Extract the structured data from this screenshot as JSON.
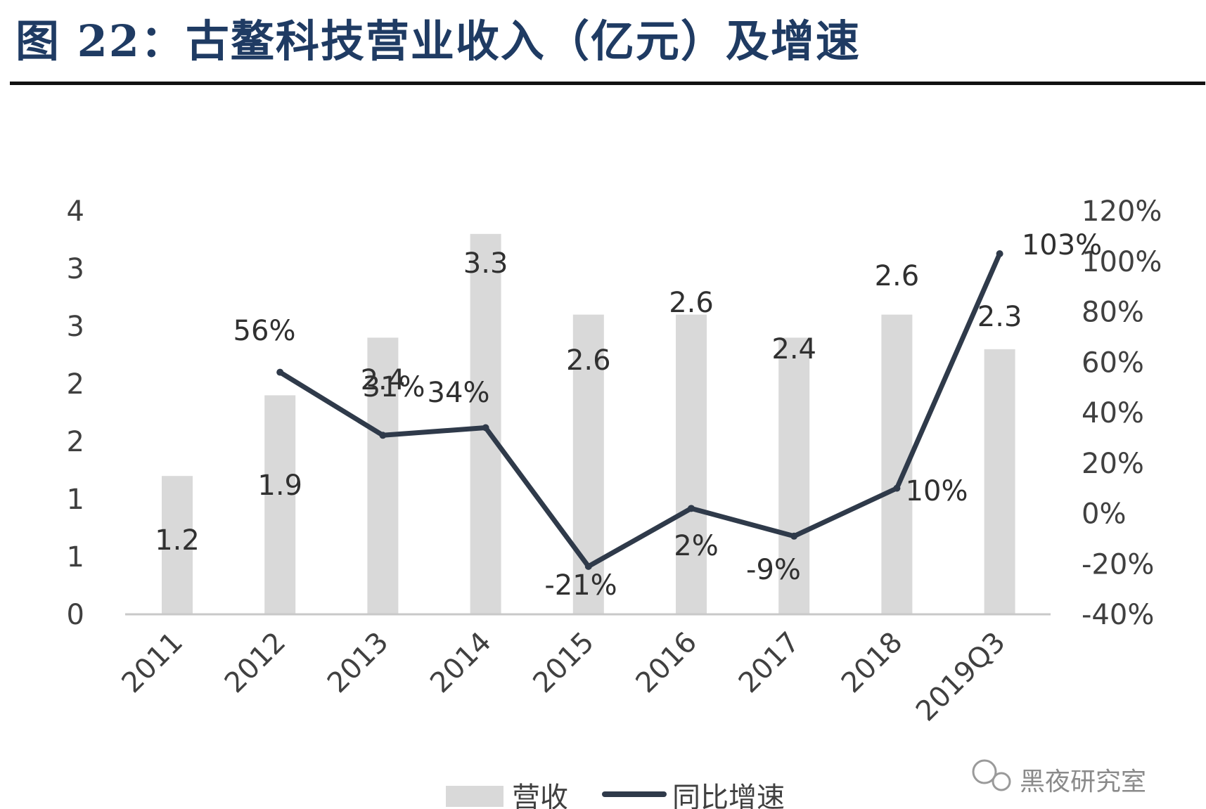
{
  "title": "图 22：古鳌科技营业收入（亿元）及增速",
  "watermark": "黑夜研究室",
  "chart_data": {
    "type": "bar",
    "title": "图 22：古鳌科技营业收入（亿元）及增速",
    "categories": [
      "2011",
      "2012",
      "2013",
      "2014",
      "2015",
      "2016",
      "2017",
      "2018",
      "2019Q3"
    ],
    "series": [
      {
        "name": "营收",
        "type": "bar",
        "axis": "left",
        "color": "#d9d9d9",
        "values": [
          1.2,
          1.9,
          2.4,
          3.3,
          2.6,
          2.6,
          2.4,
          2.6,
          2.3
        ],
        "value_labels": [
          "1.2",
          "1.9",
          "2.4",
          "3.3",
          "2.6",
          "2.6",
          "2.4",
          "2.6",
          "2.3"
        ]
      },
      {
        "name": "同比增速",
        "type": "line",
        "axis": "right",
        "color": "#2f3a4a",
        "values": [
          null,
          56,
          31,
          34,
          -21,
          2,
          -9,
          10,
          103
        ],
        "value_labels": [
          "",
          "56%",
          "31%",
          "34%",
          "-21%",
          "2%",
          "-9%",
          "10%",
          "103%"
        ]
      }
    ],
    "y_left": {
      "tick_labels": [
        "0",
        "1",
        "1",
        "2",
        "2",
        "3",
        "3",
        "4"
      ],
      "ylim": [
        0,
        3.5
      ]
    },
    "y_right": {
      "tick_labels": [
        "-40%",
        "-20%",
        "0%",
        "20%",
        "40%",
        "60%",
        "80%",
        "100%",
        "120%"
      ],
      "ylim": [
        -40,
        120
      ]
    },
    "legend": {
      "position": "bottom",
      "items": [
        {
          "label": "营收",
          "color": "#d9d9d9",
          "kind": "bar"
        },
        {
          "label": "同比增速",
          "color": "#2f3a4a",
          "kind": "line"
        }
      ]
    },
    "grid": false
  }
}
